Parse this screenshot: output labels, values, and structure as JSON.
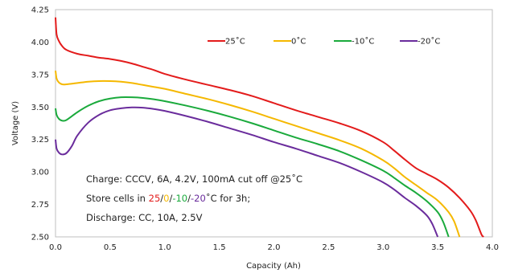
{
  "chart_data": {
    "type": "line",
    "xlabel": "Capacity (Ah)",
    "ylabel": "Voltage (V)",
    "xlim": [
      0,
      4
    ],
    "ylim": [
      2.5,
      4.25
    ],
    "xticks": [
      "0.0",
      "0.5",
      "1.0",
      "1.5",
      "2.0",
      "2.5",
      "3.0",
      "3.5",
      "4.0"
    ],
    "yticks": [
      "2.50",
      "2.75",
      "3.00",
      "3.25",
      "3.50",
      "3.75",
      "4.00",
      "4.25"
    ],
    "grid": false,
    "legend_position": "top-right",
    "series": [
      {
        "name": "25˚C",
        "color": "#e31b1b",
        "points": [
          [
            0.0,
            4.19
          ],
          [
            0.01,
            4.06
          ],
          [
            0.03,
            4.01
          ],
          [
            0.06,
            3.97
          ],
          [
            0.1,
            3.94
          ],
          [
            0.2,
            3.91
          ],
          [
            0.3,
            3.895
          ],
          [
            0.4,
            3.88
          ],
          [
            0.5,
            3.87
          ],
          [
            0.6,
            3.855
          ],
          [
            0.7,
            3.835
          ],
          [
            0.8,
            3.81
          ],
          [
            0.9,
            3.785
          ],
          [
            1.0,
            3.755
          ],
          [
            1.2,
            3.71
          ],
          [
            1.4,
            3.67
          ],
          [
            1.6,
            3.63
          ],
          [
            1.8,
            3.585
          ],
          [
            2.0,
            3.53
          ],
          [
            2.2,
            3.475
          ],
          [
            2.4,
            3.425
          ],
          [
            2.6,
            3.375
          ],
          [
            2.8,
            3.315
          ],
          [
            3.0,
            3.23
          ],
          [
            3.1,
            3.165
          ],
          [
            3.2,
            3.095
          ],
          [
            3.3,
            3.03
          ],
          [
            3.4,
            2.985
          ],
          [
            3.5,
            2.94
          ],
          [
            3.6,
            2.88
          ],
          [
            3.7,
            2.8
          ],
          [
            3.8,
            2.7
          ],
          [
            3.85,
            2.625
          ],
          [
            3.9,
            2.52
          ],
          [
            3.92,
            2.5
          ]
        ]
      },
      {
        "name": "0˚C",
        "color": "#f5b800",
        "points": [
          [
            0.0,
            3.78
          ],
          [
            0.01,
            3.72
          ],
          [
            0.03,
            3.69
          ],
          [
            0.06,
            3.675
          ],
          [
            0.1,
            3.675
          ],
          [
            0.2,
            3.685
          ],
          [
            0.3,
            3.695
          ],
          [
            0.4,
            3.7
          ],
          [
            0.5,
            3.7
          ],
          [
            0.6,
            3.695
          ],
          [
            0.7,
            3.685
          ],
          [
            0.8,
            3.67
          ],
          [
            0.9,
            3.655
          ],
          [
            1.0,
            3.64
          ],
          [
            1.2,
            3.6
          ],
          [
            1.4,
            3.56
          ],
          [
            1.6,
            3.515
          ],
          [
            1.8,
            3.465
          ],
          [
            2.0,
            3.41
          ],
          [
            2.2,
            3.355
          ],
          [
            2.4,
            3.3
          ],
          [
            2.6,
            3.245
          ],
          [
            2.8,
            3.18
          ],
          [
            3.0,
            3.09
          ],
          [
            3.1,
            3.03
          ],
          [
            3.2,
            2.96
          ],
          [
            3.3,
            2.9
          ],
          [
            3.4,
            2.84
          ],
          [
            3.5,
            2.78
          ],
          [
            3.6,
            2.69
          ],
          [
            3.65,
            2.62
          ],
          [
            3.7,
            2.5
          ]
        ]
      },
      {
        "name": "-10˚C",
        "color": "#1aaa3c",
        "points": [
          [
            0.0,
            3.49
          ],
          [
            0.01,
            3.44
          ],
          [
            0.03,
            3.41
          ],
          [
            0.06,
            3.395
          ],
          [
            0.1,
            3.4
          ],
          [
            0.2,
            3.46
          ],
          [
            0.3,
            3.51
          ],
          [
            0.4,
            3.545
          ],
          [
            0.5,
            3.565
          ],
          [
            0.6,
            3.575
          ],
          [
            0.7,
            3.575
          ],
          [
            0.8,
            3.57
          ],
          [
            0.9,
            3.56
          ],
          [
            1.0,
            3.545
          ],
          [
            1.2,
            3.51
          ],
          [
            1.4,
            3.47
          ],
          [
            1.6,
            3.425
          ],
          [
            1.8,
            3.375
          ],
          [
            2.0,
            3.32
          ],
          [
            2.2,
            3.265
          ],
          [
            2.4,
            3.215
          ],
          [
            2.6,
            3.16
          ],
          [
            2.8,
            3.09
          ],
          [
            3.0,
            3.01
          ],
          [
            3.1,
            2.955
          ],
          [
            3.2,
            2.895
          ],
          [
            3.3,
            2.84
          ],
          [
            3.4,
            2.775
          ],
          [
            3.5,
            2.69
          ],
          [
            3.55,
            2.615
          ],
          [
            3.6,
            2.5
          ]
        ]
      },
      {
        "name": "-20˚C",
        "color": "#6a2c9c",
        "points": [
          [
            0.0,
            3.25
          ],
          [
            0.01,
            3.18
          ],
          [
            0.03,
            3.15
          ],
          [
            0.06,
            3.135
          ],
          [
            0.1,
            3.145
          ],
          [
            0.15,
            3.2
          ],
          [
            0.2,
            3.28
          ],
          [
            0.3,
            3.38
          ],
          [
            0.4,
            3.44
          ],
          [
            0.5,
            3.475
          ],
          [
            0.6,
            3.49
          ],
          [
            0.7,
            3.497
          ],
          [
            0.8,
            3.495
          ],
          [
            0.9,
            3.485
          ],
          [
            1.0,
            3.47
          ],
          [
            1.2,
            3.43
          ],
          [
            1.4,
            3.385
          ],
          [
            1.6,
            3.335
          ],
          [
            1.8,
            3.285
          ],
          [
            2.0,
            3.23
          ],
          [
            2.2,
            3.18
          ],
          [
            2.4,
            3.125
          ],
          [
            2.6,
            3.07
          ],
          [
            2.8,
            3.0
          ],
          [
            3.0,
            2.92
          ],
          [
            3.1,
            2.865
          ],
          [
            3.2,
            2.8
          ],
          [
            3.3,
            2.74
          ],
          [
            3.4,
            2.665
          ],
          [
            3.45,
            2.6
          ],
          [
            3.5,
            2.5
          ]
        ]
      }
    ],
    "annotations": {
      "line1": "Charge: CCCV, 6A, 4.2V, 100mA cut off @25˚C",
      "line2": [
        {
          "text": "Store cells in ",
          "color": "#222222"
        },
        {
          "text": "25",
          "color": "#e31b1b"
        },
        {
          "text": "/",
          "color": "#222222"
        },
        {
          "text": "0",
          "color": "#f5b800"
        },
        {
          "text": "/",
          "color": "#222222"
        },
        {
          "text": "-10",
          "color": "#1aaa3c"
        },
        {
          "text": "/",
          "color": "#222222"
        },
        {
          "text": "-20",
          "color": "#6a2c9c"
        },
        {
          "text": "˚C for 3h;",
          "color": "#222222"
        }
      ],
      "line3": "Discharge: CC, 10A, 2.5V"
    }
  }
}
